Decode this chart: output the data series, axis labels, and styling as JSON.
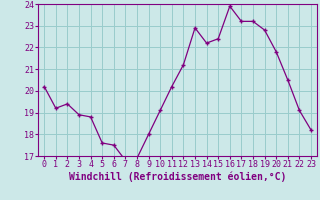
{
  "x": [
    0,
    1,
    2,
    3,
    4,
    5,
    6,
    7,
    8,
    9,
    10,
    11,
    12,
    13,
    14,
    15,
    16,
    17,
    18,
    19,
    20,
    21,
    22,
    23
  ],
  "y": [
    20.2,
    19.2,
    19.4,
    18.9,
    18.8,
    17.6,
    17.5,
    16.8,
    16.9,
    18.0,
    19.1,
    20.2,
    21.2,
    22.9,
    22.2,
    22.4,
    23.9,
    23.2,
    23.2,
    22.8,
    21.8,
    20.5,
    19.1,
    18.2
  ],
  "ylim": [
    17,
    24
  ],
  "xlim": [
    -0.5,
    23.5
  ],
  "yticks": [
    17,
    18,
    19,
    20,
    21,
    22,
    23,
    24
  ],
  "xticks": [
    0,
    1,
    2,
    3,
    4,
    5,
    6,
    7,
    8,
    9,
    10,
    11,
    12,
    13,
    14,
    15,
    16,
    17,
    18,
    19,
    20,
    21,
    22,
    23
  ],
  "xlabel": "Windchill (Refroidissement éolien,°C)",
  "line_color": "#800080",
  "marker_color": "#800080",
  "bg_color": "#cce8e8",
  "grid_color": "#99cccc",
  "tick_label_fontsize": 6.0,
  "xlabel_fontsize": 7.0
}
